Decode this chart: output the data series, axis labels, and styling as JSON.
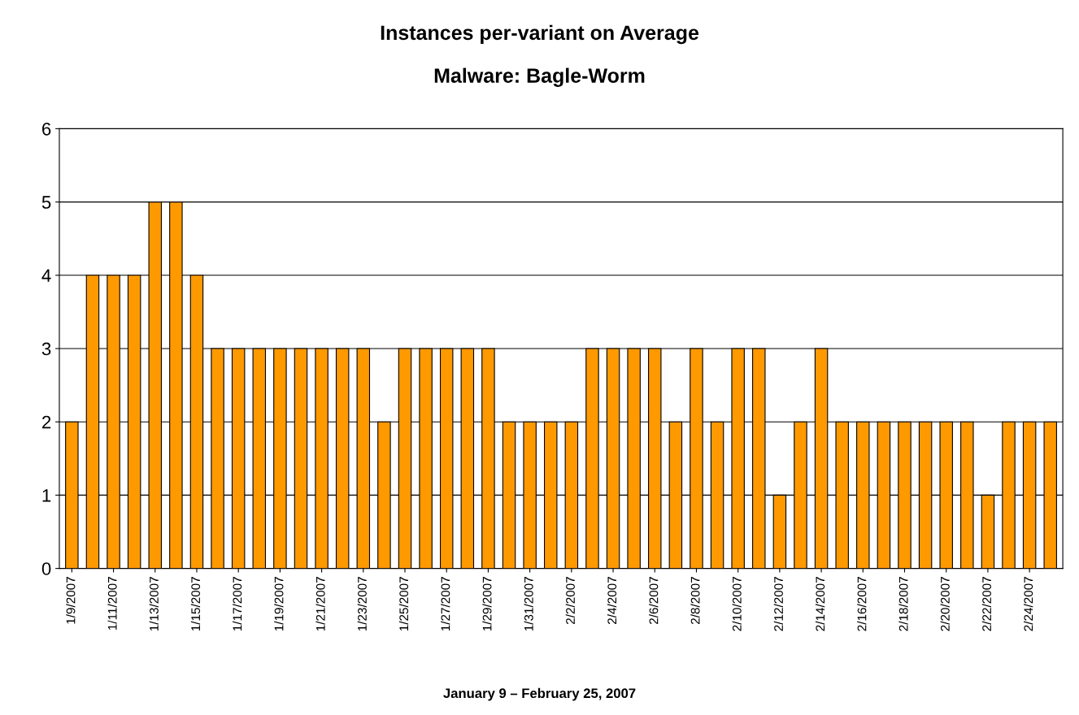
{
  "chart_data": {
    "type": "bar",
    "title": "Instances per-variant on Average",
    "subtitle": "Malware: Bagle-Worm",
    "xlabel": "January 9 – February 25, 2007",
    "categories": [
      "1/9/2007",
      null,
      "1/11/2007",
      null,
      "1/13/2007",
      null,
      "1/15/2007",
      null,
      "1/17/2007",
      null,
      "1/19/2007",
      null,
      "1/21/2007",
      null,
      "1/23/2007",
      null,
      "1/25/2007",
      null,
      "1/27/2007",
      null,
      "1/29/2007",
      null,
      "1/31/2007",
      null,
      "2/2/2007",
      null,
      "2/4/2007",
      null,
      "2/6/2007",
      null,
      "2/8/2007",
      null,
      "2/10/2007",
      null,
      "2/12/2007",
      null,
      "2/14/2007",
      null,
      "2/16/2007",
      null,
      "2/18/2007",
      null,
      "2/20/2007",
      null,
      "2/22/2007",
      null,
      "2/24/2007",
      null
    ],
    "values": [
      2,
      4,
      4,
      4,
      5,
      5,
      4,
      3,
      3,
      3,
      3,
      3,
      3,
      3,
      3,
      2,
      3,
      3,
      3,
      3,
      3,
      2,
      2,
      2,
      2,
      3,
      3,
      3,
      3,
      2,
      3,
      2,
      3,
      3,
      1,
      2,
      3,
      2,
      2,
      2,
      2,
      2,
      2,
      2,
      1,
      2,
      2,
      2
    ],
    "color": "#ff9900",
    "ylim": [
      0,
      6
    ],
    "yticks": [
      0,
      1,
      2,
      3,
      4,
      5,
      6
    ],
    "grid": "y"
  }
}
